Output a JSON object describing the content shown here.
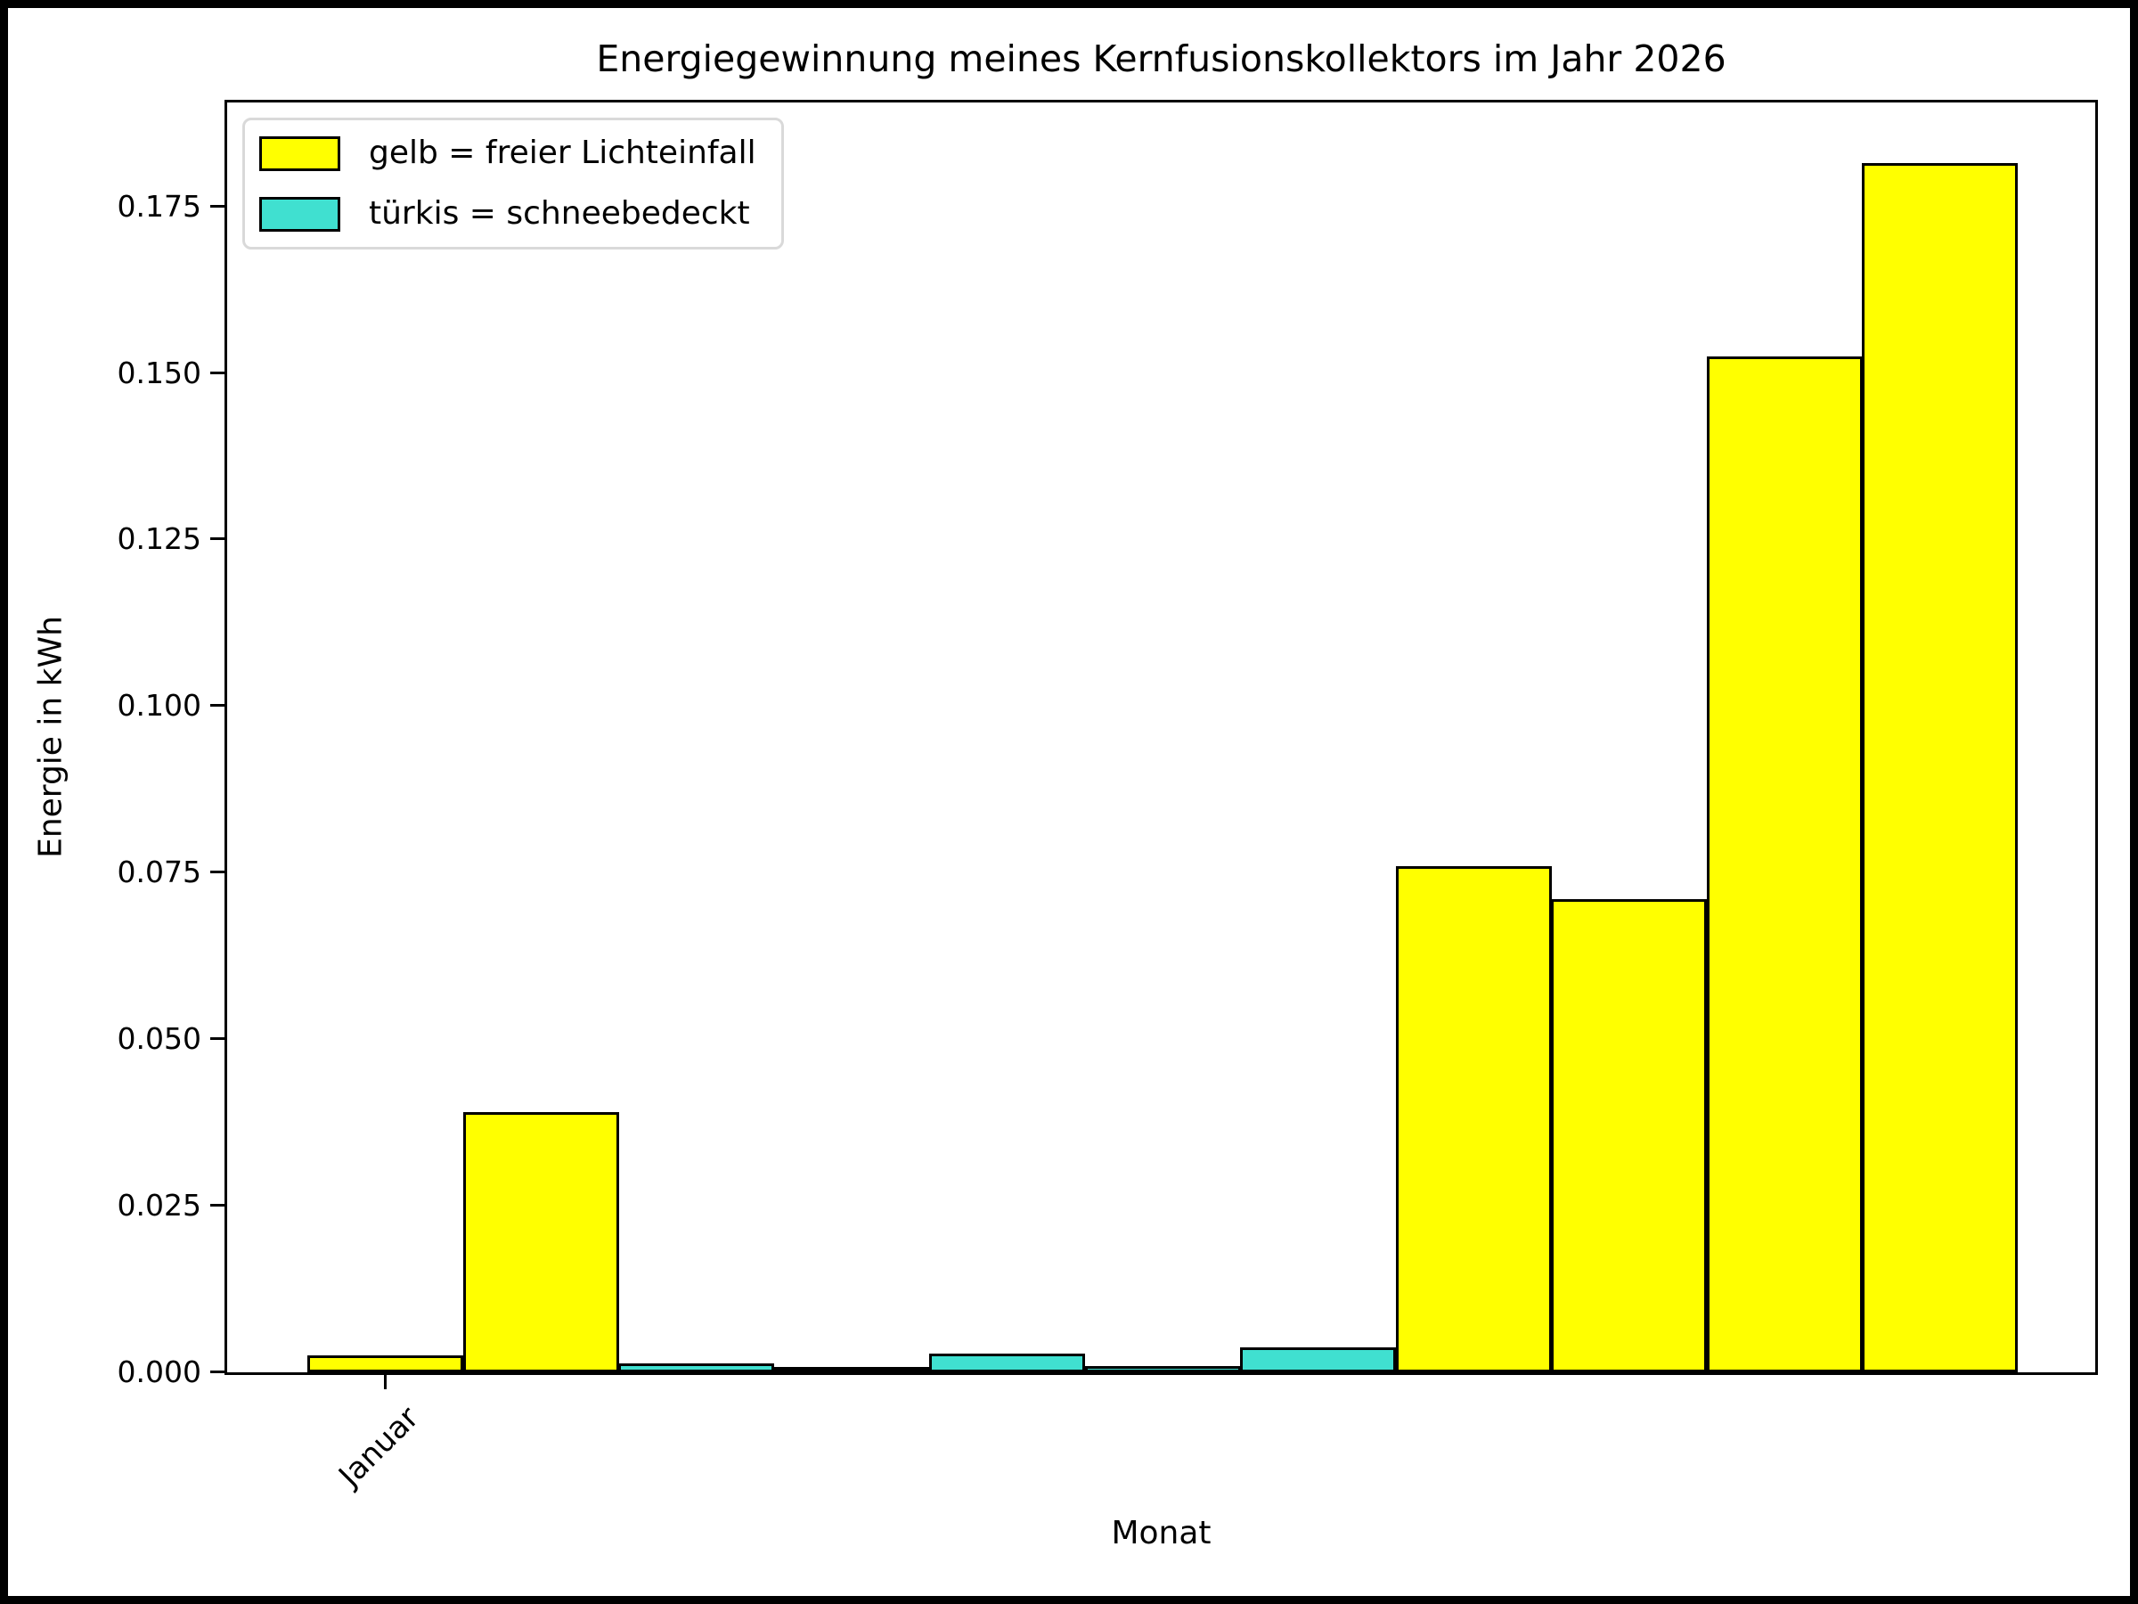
{
  "figure": {
    "background": "#ffffff",
    "border_color": "#000000"
  },
  "chart_data": {
    "type": "bar",
    "title": "Energiegewinnung meines Kernfusionskollektors im Jahr 2026",
    "xlabel": "Monat",
    "ylabel": "Energie in kWh",
    "ylim": [
      0,
      0.1906
    ],
    "ytick_labels": [
      "0.000",
      "0.025",
      "0.050",
      "0.075",
      "0.100",
      "0.125",
      "0.150",
      "0.175"
    ],
    "categories": [
      "Januar",
      "",
      "",
      "",
      "",
      "",
      "",
      "",
      "",
      "",
      ""
    ],
    "values": [
      0.0025,
      0.039,
      0.0013,
      0.0005,
      0.0028,
      0.001,
      0.0037,
      0.076,
      0.071,
      0.1525,
      0.1815
    ],
    "bar_colors": [
      "#ffff00",
      "#ffff00",
      "#40e0d0",
      "#40e0d0",
      "#40e0d0",
      "#40e0d0",
      "#40e0d0",
      "#ffff00",
      "#ffff00",
      "#ffff00",
      "#ffff00"
    ],
    "bar_edge_color": "#000000",
    "grid": false,
    "legend_position": "upper left"
  },
  "legend": {
    "items": [
      {
        "label": "gelb = freier Lichteinfall",
        "color": "#ffff00"
      },
      {
        "label": "türkis = schneebedeckt",
        "color": "#40e0d0"
      }
    ]
  }
}
